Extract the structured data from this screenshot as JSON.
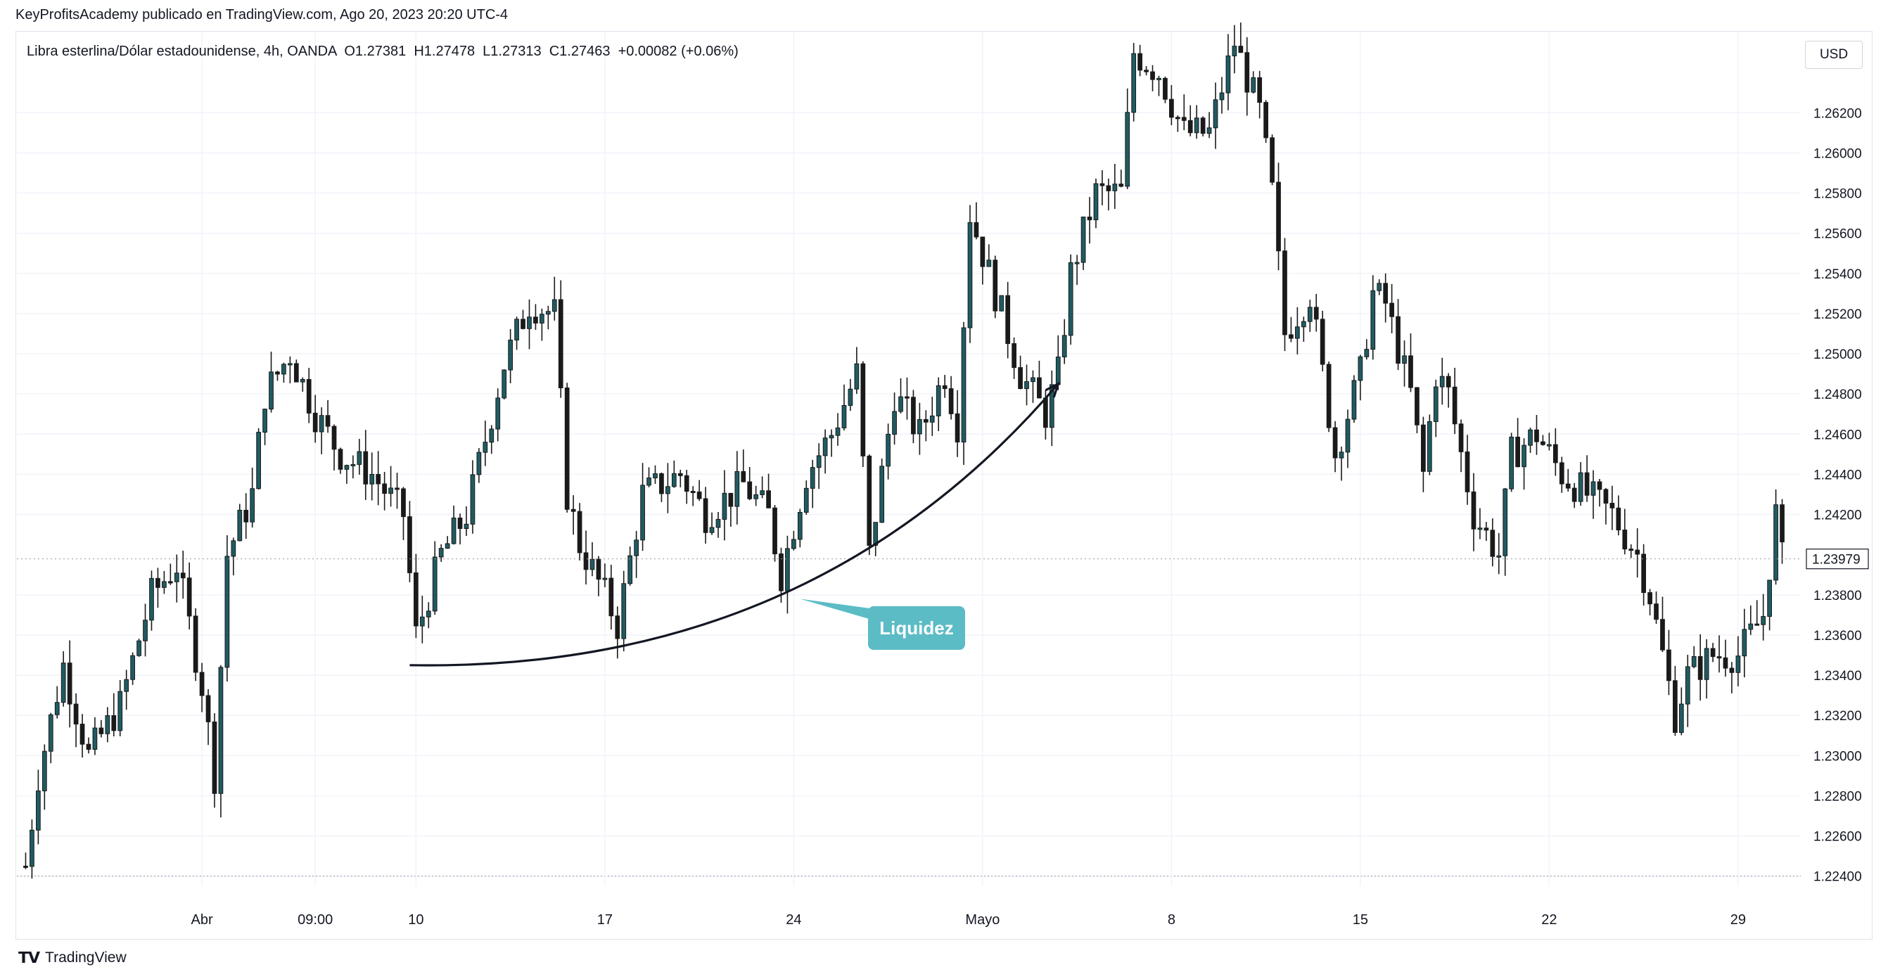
{
  "header": {
    "publisher_line": "KeyProfitsAcademy publicado en TradingView.com, Ago 20, 2023 20:20 UTC-4",
    "symbol_line": "Libra esterlina/Dólar estadounidense, 4h, OANDA  O1.27381  H1.27478  L1.27313  C1.27463  +0.00082 (+0.06%)",
    "currency": "USD"
  },
  "footer": {
    "brand": "TradingView"
  },
  "colors": {
    "bull": "#26a69a",
    "bear": "#1a1a1a",
    "candle_body": "#1f5c63",
    "grid": "#f0f3fa",
    "callout_bg": "#5bbcc5",
    "callout_text": "#ffffff",
    "curve": "#131722",
    "price_label_bg": "#ffffff"
  },
  "chart_data": {
    "type": "candlestick",
    "timeframe": "4h",
    "ylim": [
      1.2235,
      1.266
    ],
    "yticks": [
      "1.22400",
      "1.22600",
      "1.22800",
      "1.23000",
      "1.23200",
      "1.23400",
      "1.23600",
      "1.23800",
      "1.24200",
      "1.24400",
      "1.24600",
      "1.24800",
      "1.25000",
      "1.25200",
      "1.25400",
      "1.25600",
      "1.25800",
      "1.26000",
      "1.26200"
    ],
    "ytick_values": [
      1.224,
      1.226,
      1.228,
      1.23,
      1.232,
      1.234,
      1.236,
      1.238,
      1.242,
      1.244,
      1.246,
      1.248,
      1.25,
      1.252,
      1.254,
      1.256,
      1.258,
      1.26,
      1.262
    ],
    "last_price": "1.23979",
    "last_price_value": 1.23979,
    "xticks": [
      "Abr",
      "09:00",
      "10",
      "17",
      "24",
      "Mayo",
      "8",
      "15",
      "22",
      "29"
    ],
    "xtick_index": [
      28,
      46,
      62,
      92,
      122,
      152,
      182,
      212,
      242,
      272
    ],
    "anchor_points": [
      [
        0,
        1.2245
      ],
      [
        2,
        1.229
      ],
      [
        6,
        1.2345
      ],
      [
        10,
        1.23
      ],
      [
        15,
        1.2325
      ],
      [
        20,
        1.238
      ],
      [
        24,
        1.2395
      ],
      [
        28,
        1.2335
      ],
      [
        30,
        1.229
      ],
      [
        32,
        1.24
      ],
      [
        36,
        1.243
      ],
      [
        38,
        1.248
      ],
      [
        42,
        1.25
      ],
      [
        46,
        1.247
      ],
      [
        50,
        1.245
      ],
      [
        55,
        1.244
      ],
      [
        60,
        1.242
      ],
      [
        62,
        1.236
      ],
      [
        66,
        1.24
      ],
      [
        70,
        1.242
      ],
      [
        76,
        1.2495
      ],
      [
        80,
        1.2525
      ],
      [
        84,
        1.252
      ],
      [
        86,
        1.243
      ],
      [
        88,
        1.2405
      ],
      [
        92,
        1.238
      ],
      [
        94,
        1.2365
      ],
      [
        98,
        1.243
      ],
      [
        104,
        1.244
      ],
      [
        108,
        1.242
      ],
      [
        114,
        1.2435
      ],
      [
        118,
        1.242
      ],
      [
        120,
        1.239
      ],
      [
        124,
        1.244
      ],
      [
        128,
        1.246
      ],
      [
        132,
        1.249
      ],
      [
        134,
        1.24
      ],
      [
        138,
        1.248
      ],
      [
        142,
        1.246
      ],
      [
        146,
        1.249
      ],
      [
        148,
        1.2465
      ],
      [
        150,
        1.257
      ],
      [
        154,
        1.253
      ],
      [
        158,
        1.249
      ],
      [
        162,
        1.247
      ],
      [
        164,
        1.249
      ],
      [
        166,
        1.254
      ],
      [
        170,
        1.258
      ],
      [
        174,
        1.258
      ],
      [
        176,
        1.265
      ],
      [
        180,
        1.264
      ],
      [
        184,
        1.261
      ],
      [
        188,
        1.261
      ],
      [
        192,
        1.2655
      ],
      [
        196,
        1.262
      ],
      [
        198,
        1.258
      ],
      [
        200,
        1.251
      ],
      [
        204,
        1.253
      ],
      [
        208,
        1.245
      ],
      [
        212,
        1.249
      ],
      [
        214,
        1.253
      ],
      [
        216,
        1.2525
      ],
      [
        220,
        1.248
      ],
      [
        222,
        1.244
      ],
      [
        224,
        1.249
      ],
      [
        226,
        1.248
      ],
      [
        230,
        1.242
      ],
      [
        234,
        1.24
      ],
      [
        236,
        1.245
      ],
      [
        240,
        1.246
      ],
      [
        244,
        1.244
      ],
      [
        248,
        1.243
      ],
      [
        252,
        1.242
      ],
      [
        256,
        1.24
      ],
      [
        258,
        1.238
      ],
      [
        260,
        1.235
      ],
      [
        262,
        1.232
      ],
      [
        264,
        1.234
      ],
      [
        268,
        1.235
      ],
      [
        272,
        1.235
      ],
      [
        276,
        1.237
      ],
      [
        278,
        1.242
      ],
      [
        279,
        1.2398
      ]
    ],
    "candle_count": 280,
    "annotations": [
      {
        "type": "curved_arrow",
        "from_index": 61,
        "from_price": 1.2345,
        "to_index": 164,
        "to_price": 1.2485
      },
      {
        "type": "callout",
        "text": "Liquidez",
        "pointer_index": 123,
        "pointer_price": 1.2378
      }
    ]
  }
}
